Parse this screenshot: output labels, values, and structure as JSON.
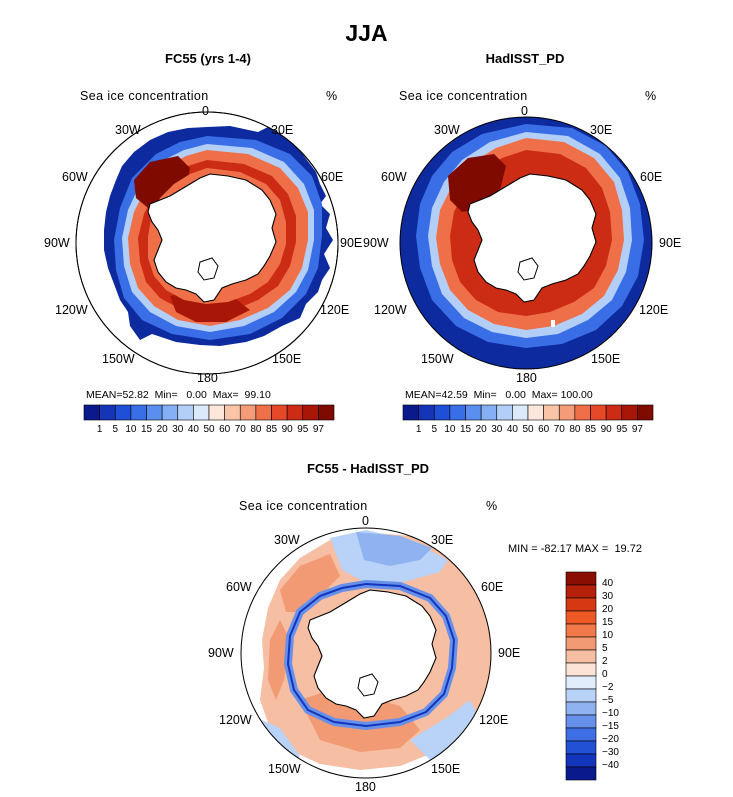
{
  "title": "JJA",
  "variable_label": "Sea ice concentration",
  "unit": "%",
  "longitude_labels": [
    "0",
    "30E",
    "60E",
    "90E",
    "120E",
    "150E",
    "180",
    "150W",
    "120W",
    "90W",
    "60W",
    "30W"
  ],
  "panels": [
    {
      "title": "FC55 (yrs 1-4)",
      "stats": {
        "mean_label": "MEAN=",
        "mean": "52.82",
        "min_label": "Min=",
        "min": "0.00",
        "max_label": "Max=",
        "max": "99.10"
      }
    },
    {
      "title": "HadISST_PD",
      "stats": {
        "mean_label": "MEAN=",
        "mean": "42.59",
        "min_label": "Min=",
        "min": "0.00",
        "max_label": "Max=",
        "max": "100.00"
      }
    },
    {
      "title": "FC55 - HadISST_PD",
      "minmax": {
        "min_label": "MIN =",
        "min": "-82.17",
        "max_label": "MAX =",
        "max": "19.72"
      }
    }
  ],
  "concentration_colorbar": {
    "labels": [
      "1",
      "5",
      "10",
      "15",
      "20",
      "30",
      "40",
      "50",
      "60",
      "70",
      "80",
      "85",
      "90",
      "95",
      "97"
    ],
    "colors": [
      "#0a1a8c",
      "#1634b8",
      "#1f4fd6",
      "#3a6ee6",
      "#5a8ff0",
      "#86b0f5",
      "#b3cff8",
      "#dce9fb",
      "#fde7db",
      "#f9c4a8",
      "#f49c78",
      "#ef7048",
      "#e6482a",
      "#cc2c14",
      "#a81608",
      "#7f0a00"
    ]
  },
  "difference_colorbar": {
    "labels": [
      "40",
      "30",
      "20",
      "15",
      "10",
      "5",
      "2",
      "0",
      "−2",
      "−5",
      "−10",
      "−15",
      "−20",
      "−30",
      "−40"
    ],
    "colors": [
      "#8a0f02",
      "#b5200a",
      "#d53812",
      "#ed5a26",
      "#f2794a",
      "#f29a73",
      "#f6bea2",
      "#fbe3d6",
      "#e1edfb",
      "#b9d2f7",
      "#8fb3f1",
      "#6690ea",
      "#3e6ee4",
      "#2351d6",
      "#1335bb",
      "#0a1a8c"
    ]
  },
  "map_colors": {
    "ocean_high_ice": "#0d2a9e",
    "land": "#ffffff",
    "coast": "#000000"
  }
}
